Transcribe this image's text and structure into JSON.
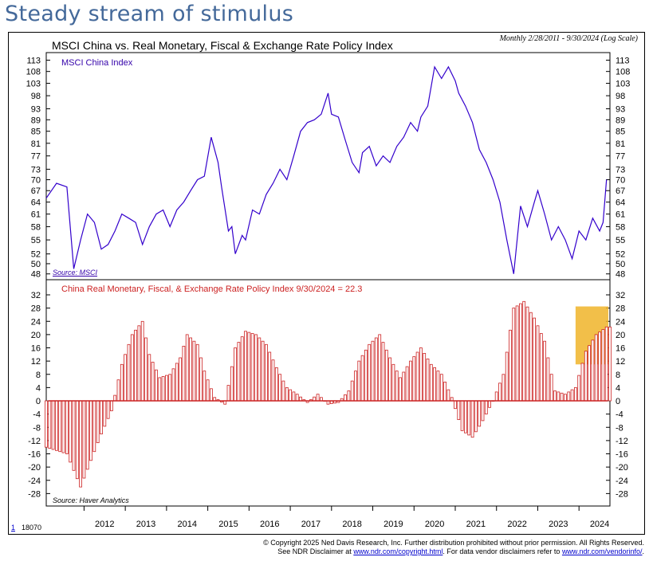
{
  "headline": "Steady stream of stimulus",
  "chart_data": [
    {
      "type": "line",
      "title": "MSCI China vs. Real Monetary, Fiscal & Exchange Rate Policy Index",
      "subtitle": "Monthly 2/28/2011 - 9/30/2024 (Log Scale)",
      "series": [
        {
          "name": "MSCI China Index",
          "color": "#3300cc",
          "x": [
            "2011-02",
            "2011-05",
            "2011-08",
            "2011-10",
            "2011-12",
            "2012-02",
            "2012-04",
            "2012-06",
            "2012-08",
            "2012-10",
            "2012-12",
            "2013-02",
            "2013-04",
            "2013-06",
            "2013-08",
            "2013-10",
            "2013-12",
            "2014-02",
            "2014-04",
            "2014-06",
            "2014-08",
            "2014-10",
            "2014-12",
            "2015-02",
            "2015-04",
            "2015-05",
            "2015-07",
            "2015-08",
            "2015-09",
            "2015-11",
            "2015-12",
            "2016-02",
            "2016-04",
            "2016-06",
            "2016-08",
            "2016-10",
            "2016-12",
            "2017-02",
            "2017-04",
            "2017-06",
            "2017-08",
            "2017-10",
            "2017-12",
            "2018-01",
            "2018-03",
            "2018-05",
            "2018-07",
            "2018-09",
            "2018-10",
            "2018-12",
            "2019-02",
            "2019-04",
            "2019-06",
            "2019-08",
            "2019-10",
            "2019-12",
            "2020-02",
            "2020-03",
            "2020-05",
            "2020-07",
            "2020-09",
            "2020-11",
            "2021-01",
            "2021-02",
            "2021-04",
            "2021-06",
            "2021-08",
            "2021-10",
            "2021-12",
            "2022-02",
            "2022-04",
            "2022-06",
            "2022-08",
            "2022-10",
            "2022-12",
            "2023-01",
            "2023-03",
            "2023-05",
            "2023-07",
            "2023-09",
            "2023-11",
            "2024-01",
            "2024-03",
            "2024-05",
            "2024-07",
            "2024-08",
            "2024-09"
          ],
          "values": [
            65,
            69,
            68,
            49,
            55,
            61,
            59,
            53,
            54,
            57,
            61,
            60,
            59,
            54,
            58,
            61,
            62,
            58,
            62,
            64,
            67,
            70,
            71,
            83,
            75,
            68,
            57,
            58,
            52,
            56,
            55,
            62,
            61,
            66,
            69,
            73,
            70,
            77,
            85,
            88,
            89,
            91,
            99,
            91,
            90,
            82,
            75,
            72,
            78,
            80,
            74,
            77,
            75,
            80,
            83,
            88,
            85,
            90,
            94,
            110,
            105,
            110,
            104,
            99,
            94,
            88,
            79,
            75,
            70,
            64,
            55,
            48,
            63,
            58,
            64,
            67,
            61,
            55,
            58,
            55,
            51,
            57,
            55,
            60,
            57,
            59,
            70
          ]
        }
      ],
      "ylabels": [
        "113",
        "108",
        "103",
        "98",
        "93",
        "89",
        "85",
        "81",
        "77",
        "73",
        "70",
        "67",
        "64",
        "61",
        "58",
        "55",
        "52",
        "50",
        "48"
      ],
      "ylim": [
        47.5,
        115
      ],
      "source": "Source: MSCI"
    },
    {
      "type": "bar",
      "title": "China Real Monetary, Fiscal, & Exchange Rate Policy Index 9/30/2024 = 22.3",
      "color": "#cc2222",
      "highlight_color": "#f0b429",
      "x": [
        "2011-02",
        "2011-08",
        "2011-12",
        "2012-03",
        "2012-06",
        "2012-09",
        "2012-12",
        "2013-03",
        "2013-06",
        "2013-08",
        "2013-11",
        "2014-02",
        "2014-05",
        "2014-07",
        "2014-10",
        "2014-12",
        "2015-03",
        "2015-06",
        "2015-09",
        "2015-12",
        "2016-03",
        "2016-06",
        "2016-09",
        "2016-12",
        "2017-03",
        "2017-06",
        "2017-09",
        "2017-12",
        "2018-03",
        "2018-06",
        "2018-09",
        "2018-12",
        "2019-03",
        "2019-06",
        "2019-09",
        "2019-12",
        "2020-03",
        "2020-06",
        "2020-09",
        "2020-12",
        "2021-03",
        "2021-06",
        "2021-09",
        "2021-12",
        "2022-03",
        "2022-06",
        "2022-09",
        "2022-12",
        "2023-03",
        "2023-06",
        "2023-09",
        "2023-12",
        "2024-03",
        "2024-06",
        "2024-09"
      ],
      "values": [
        -14,
        -16,
        -26,
        -18,
        -10,
        -3,
        11,
        20,
        24,
        14,
        7,
        8,
        13,
        20,
        17,
        9,
        1,
        -1,
        16,
        21,
        20,
        17,
        10,
        4,
        2,
        -0.5,
        2,
        -1,
        -0.5,
        3,
        12,
        17,
        20,
        13,
        7,
        12,
        16,
        11,
        8,
        1,
        -9,
        -11,
        -6,
        0,
        8,
        28,
        30,
        25,
        18,
        3,
        2,
        4,
        15,
        20,
        22.3
      ],
      "ylabels": [
        "32",
        "28",
        "24",
        "20",
        "16",
        "12",
        "8",
        "4",
        "0",
        "-4",
        "-8",
        "-12",
        "-16",
        "-20",
        "-24",
        "-28"
      ],
      "ylim": [
        -32,
        32
      ],
      "source": "Source: Haver Analytics"
    }
  ],
  "x_axis_years": [
    "2012",
    "2013",
    "2014",
    "2015",
    "2016",
    "2017",
    "2018",
    "2019",
    "2020",
    "2021",
    "2022",
    "2023",
    "2024"
  ],
  "footer": {
    "chart_id_link": "1",
    "chart_id": "18070",
    "copyright": "© Copyright 2025 Ned Davis Research, Inc. Further distribution prohibited without prior permission. All Rights Reserved.",
    "disclaimer_prefix": "See NDR Disclaimer at",
    "disclaimer_link": "www.ndr.com/copyright.html",
    "disclaimer_mid": ". For data vendor disclaimers refer to",
    "vendor_link": "www.ndr.com/vendorinfo/",
    "disclaimer_end": "."
  }
}
